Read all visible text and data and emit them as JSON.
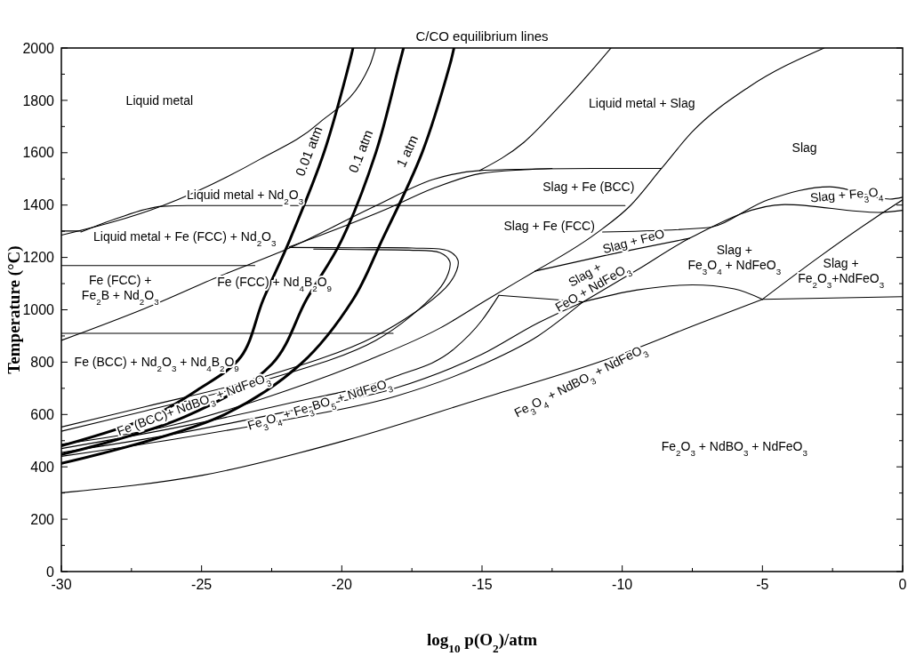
{
  "chart_data": {
    "type": "line",
    "title": "C/CO equilibrium lines",
    "xlabel": "log$_{10}$ p(O$_{2}$)/atm",
    "ylabel": "Temperature (°C)",
    "xlim": [
      -30,
      0
    ],
    "ylim": [
      0,
      2000
    ],
    "xticks": [
      -30,
      {
        "value": -27.5,
        "label": null
      },
      -25,
      {
        "value": -22.5,
        "label": null
      },
      -20,
      {
        "value": -17.5,
        "label": null
      },
      -15,
      {
        "value": -12.5,
        "label": null
      },
      -10,
      {
        "value": -7.5,
        "label": null
      },
      -5,
      {
        "value": -2.5,
        "label": null
      },
      0
    ],
    "yticks": [
      0,
      {
        "value": 100,
        "label": null
      },
      200,
      {
        "value": 300,
        "label": null
      },
      400,
      {
        "value": 500,
        "label": null
      },
      600,
      {
        "value": 700,
        "label": null
      },
      800,
      {
        "value": 900,
        "label": null
      },
      1000,
      {
        "value": 1100,
        "label": null
      },
      1200,
      {
        "value": 1300,
        "label": null
      },
      1400,
      {
        "value": 1500,
        "label": null
      },
      1600,
      {
        "value": 1700,
        "label": null
      },
      1800,
      {
        "value": 1900,
        "label": null
      },
      2000
    ],
    "grid": false,
    "legend": false,
    "marker": "none",
    "line_style": "solid",
    "series": [
      {
        "name": "0.01 atm",
        "color": "#000000",
        "x": [
          -30,
          -26.8,
          -25.16,
          -23.6,
          -22.8,
          -21.87,
          -20.64,
          -19.75,
          -19.6
        ],
        "values": [
          480,
          592,
          693,
          820,
          1039,
          1263,
          1599,
          1934,
          2000
        ]
      },
      {
        "name": "0.1 atm",
        "color": "#000000",
        "x": [
          -30,
          -25.58,
          -22.49,
          -21.26,
          -20.02,
          -18.79,
          -17.96,
          -17.8
        ],
        "values": [
          447,
          592,
          793,
          1039,
          1263,
          1599,
          1934,
          2000
        ]
      },
      {
        "name": "1 atm",
        "color": "#000000",
        "x": [
          -30,
          -24.34,
          -21.46,
          -19.6,
          -18.58,
          -17.14,
          -16.15,
          -16.0
        ],
        "values": [
          413,
          592,
          793,
          1039,
          1263,
          1599,
          1934,
          2000
        ]
      },
      {
        "color": "#000000",
        "x": [
          -30,
          -26.4,
          -22.9,
          -20.84,
          -19.0,
          -18.8
        ],
        "values": [
          1285,
          1397,
          1576,
          1711,
          1934,
          2000
        ]
      },
      {
        "color": "#000000",
        "x": [
          -30,
          -29.3
        ],
        "values": [
          1301,
          1301
        ]
      },
      {
        "color": "#000000",
        "x": [
          -29.3,
          -28.05,
          -26.4,
          -25.5,
          -9.9
        ],
        "values": [
          1297,
          1348,
          1395,
          1398,
          1398
        ]
      },
      {
        "color": "#000000",
        "x": [
          -30,
          -27.0,
          -24.34,
          -21.87,
          -18.79,
          -16.73,
          -15.08,
          -13.0,
          -11.07,
          -8.6
        ],
        "values": [
          883,
          1006,
          1129,
          1236,
          1397,
          1498,
          1532,
          1538,
          1540,
          1540
        ]
      },
      {
        "color": "#000000",
        "x": [
          -21.87,
          -18.37,
          -16.73,
          -15.08,
          -13.5,
          -12.5
        ],
        "values": [
          1240,
          1386,
          1464,
          1520,
          1535,
          1540
        ]
      },
      {
        "color": "#000000",
        "x": [
          -30,
          -23.1
        ],
        "values": [
          1169,
          1169
        ]
      },
      {
        "color": "#000000",
        "x": [
          -30,
          -18.17
        ],
        "values": [
          910,
          910
        ]
      },
      {
        "color": "#000000",
        "x": [
          -15.08,
          -13.5,
          -12.3,
          -11.2,
          -10.4
        ],
        "values": [
          1532,
          1640,
          1770,
          1900,
          2000
        ]
      },
      {
        "color": "#000000",
        "x": [
          -13.1,
          -10.9,
          -9.7,
          -8.6,
          -7.5,
          -5.5,
          -2.8
        ],
        "values": [
          1148,
          1294,
          1399,
          1540,
          1680,
          1850,
          2000
        ]
      },
      {
        "color": "#000000",
        "x": [
          -30,
          -27,
          -22.9,
          -18.79,
          -16.3,
          -15.9,
          -15.86,
          -16.2,
          -17.5,
          -19.5,
          -21.87
        ],
        "values": [
          552,
          630,
          740,
          900,
          1084,
          1151,
          1190,
          1225,
          1236,
          1237,
          1238
        ]
      },
      {
        "color": "#000000",
        "x": [
          -30,
          -27,
          -22.9,
          -18.79,
          -16.6,
          -16.2,
          -16.15,
          -16.5,
          -17.6,
          -19.5,
          -21.0
        ],
        "values": [
          536,
          614,
          726,
          883,
          1070,
          1140,
          1185,
          1218,
          1228,
          1230,
          1232
        ]
      },
      {
        "color": "#000000",
        "x": [
          -30,
          -26,
          -22,
          -19,
          -16.5,
          -14.8,
          -13.7,
          -13.1
        ],
        "values": [
          486,
          560,
          690,
          810,
          930,
          1040,
          1110,
          1148
        ]
      },
      {
        "color": "#000000",
        "x": [
          -30,
          -26,
          -22,
          -18.1,
          -16,
          -15,
          -14.4
        ],
        "values": [
          470,
          548,
          640,
          745,
          850,
          960,
          1055
        ]
      },
      {
        "color": "#000000",
        "x": [
          -30,
          -26,
          -22,
          -18.1,
          -15,
          -13,
          -11.4
        ],
        "values": [
          455,
          525,
          610,
          700,
          830,
          950,
          1030
        ]
      },
      {
        "color": "#000000",
        "x": [
          -30,
          -26,
          -22,
          -18.1,
          -15,
          -13,
          -11.4
        ],
        "values": [
          440,
          505,
          580,
          669,
          790,
          900,
          1030
        ]
      },
      {
        "color": "#000000",
        "x": [
          -30,
          -24.96,
          -19.8,
          -15.08,
          -10.3,
          -7.2,
          -5
        ],
        "values": [
          301,
          368,
          503,
          659,
          820,
          950,
          1040
        ]
      },
      {
        "color": "#000000",
        "x": [
          -5,
          0
        ],
        "values": [
          1040,
          1050
        ]
      },
      {
        "color": "#000000",
        "x": [
          -11.4,
          -9.5,
          -7.5,
          -6,
          -5
        ],
        "values": [
          1030,
          1075,
          1095,
          1080,
          1040
        ]
      },
      {
        "color": "#000000",
        "x": [
          -14.4,
          -12.5,
          -11.4
        ],
        "values": [
          1055,
          1040,
          1030
        ]
      },
      {
        "color": "#000000",
        "x": [
          -11.4,
          -9.5,
          -7.6,
          -4.2,
          -0.85,
          0
        ],
        "values": [
          1030,
          1150,
          1273,
          1402,
          1372,
          1380
        ]
      },
      {
        "color": "#000000",
        "x": [
          -10.7,
          -7.0,
          -4.8,
          -2.6,
          -0.45,
          0
        ],
        "values": [
          1297,
          1313,
          1420,
          1470,
          1423,
          1430
        ]
      },
      {
        "color": "#000000",
        "x": [
          -13.1,
          -10.5,
          -7.6
        ],
        "values": [
          1148,
          1210,
          1273
        ]
      },
      {
        "color": "#000000",
        "x": [
          -5,
          -3,
          -1,
          0
        ],
        "values": [
          1040,
          1200,
          1350,
          1420
        ]
      }
    ],
    "annotations": [
      "Liquid metal",
      "Liquid metal + Slag",
      "Slag",
      "Liquid metal + Nd$_{2}$O$_{3}$",
      "Slag + Fe (BCC)",
      "Liquid metal + Fe (FCC) + Nd$_{2}$O$_{3}$",
      "Slag + Fe (FCC)",
      "Slag + Fe$_{3}$O$_{4}$",
      "Slag + FeO",
      "Fe (FCC) +\nFe$_{2}$B + Nd$_{2}$O$_{3}$",
      "Fe (FCC) + Nd$_{4}$B$_{2}$O$_{9}$",
      "Slag +\nFeO + NdFeO$_{3}$",
      "Slag +\nFe$_{3}$O$_{4}$ + NdFeO$_{3}$",
      "Slag +\nFe$_{2}$O$_{3}$+NdFeO$_{3}$",
      "Fe (BCC) + Nd$_{2}$O$_{3}$ + Nd$_{4}$B$_{2}$O$_{9}$",
      "Fe$_{3}$O$_{4}$ + NdBO$_{3}$ + NdFeO$_{3}$",
      "Fe (BCC)+ NdBO$_{3}$ + NdFeO$_{3}$",
      "Fe$_{3}$O$_{4}$ + Fe$_{3}$BO$_{5}$ + NdFeO$_{3}$",
      "Fe$_{2}$O$_{3}$ + NdBO$_{3}$ + NdFeO$_{3}$"
    ]
  }
}
